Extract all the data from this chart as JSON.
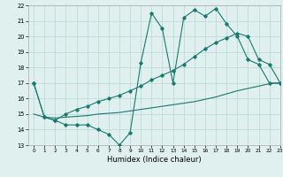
{
  "xlabel": "Humidex (Indice chaleur)",
  "line1_x": [
    0,
    1,
    2,
    3,
    4,
    5,
    6,
    7,
    8,
    9,
    10,
    11,
    12,
    13,
    14,
    15,
    16,
    17,
    18,
    19,
    20,
    21,
    22,
    23
  ],
  "line1_y": [
    17.0,
    14.8,
    14.6,
    14.3,
    14.3,
    14.3,
    14.0,
    13.7,
    13.0,
    13.8,
    18.3,
    21.5,
    20.5,
    17.0,
    21.2,
    21.7,
    21.3,
    21.8,
    20.8,
    20.0,
    18.5,
    18.2,
    17.0,
    17.0
  ],
  "line2_x": [
    0,
    1,
    2,
    3,
    4,
    5,
    6,
    7,
    8,
    9,
    10,
    11,
    12,
    13,
    14,
    15,
    16,
    17,
    18,
    19,
    20,
    21,
    22,
    23
  ],
  "line2_y": [
    17.0,
    14.8,
    14.6,
    15.0,
    15.3,
    15.5,
    15.8,
    16.0,
    16.2,
    16.5,
    16.8,
    17.2,
    17.5,
    17.8,
    18.2,
    18.7,
    19.2,
    19.6,
    19.9,
    20.2,
    20.0,
    18.5,
    18.2,
    17.0
  ],
  "line3_x": [
    0,
    1,
    2,
    3,
    4,
    5,
    6,
    7,
    8,
    9,
    10,
    11,
    12,
    13,
    14,
    15,
    16,
    17,
    18,
    19,
    20,
    21,
    22,
    23
  ],
  "line3_y": [
    15.0,
    14.8,
    14.75,
    14.8,
    14.85,
    14.9,
    15.0,
    15.05,
    15.1,
    15.2,
    15.3,
    15.4,
    15.5,
    15.6,
    15.7,
    15.8,
    15.95,
    16.1,
    16.3,
    16.5,
    16.65,
    16.8,
    16.95,
    17.0
  ],
  "color": "#1a7a6e",
  "bg_color": "#dff0ee",
  "grid_color": "#b8d8d4",
  "ylim": [
    13,
    22
  ],
  "xlim": [
    -0.5,
    23
  ],
  "yticks": [
    13,
    14,
    15,
    16,
    17,
    18,
    19,
    20,
    21,
    22
  ],
  "xticks": [
    0,
    1,
    2,
    3,
    4,
    5,
    6,
    7,
    8,
    9,
    10,
    11,
    12,
    13,
    14,
    15,
    16,
    17,
    18,
    19,
    20,
    21,
    22,
    23
  ]
}
